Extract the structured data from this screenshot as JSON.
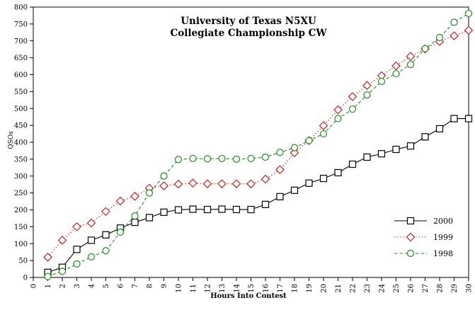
{
  "figure": {
    "title_line1": "University of Texas N5XU",
    "title_line2": "Collegiate Championship CW"
  },
  "chart_data": {
    "type": "line",
    "title": "University of Texas N5XU Collegiate Championship CW",
    "xlabel": "Hours Into Contest",
    "ylabel": "QSOs",
    "xlim": [
      0,
      30
    ],
    "ylim": [
      0,
      800
    ],
    "x_tick_step": 1,
    "y_tick_step": 50,
    "grid": false,
    "legend_position": "inside-right-middle",
    "x": [
      1,
      2,
      3,
      4,
      5,
      6,
      7,
      8,
      9,
      10,
      11,
      12,
      13,
      14,
      15,
      16,
      17,
      18,
      19,
      20,
      21,
      22,
      23,
      24,
      25,
      26,
      27,
      28,
      29,
      30
    ],
    "series": [
      {
        "name": "2000",
        "color": "#000000",
        "line_style": "solid",
        "marker": "square",
        "values": [
          15,
          30,
          83,
          110,
          126,
          146,
          163,
          177,
          193,
          200,
          202,
          201,
          202,
          201,
          201,
          216,
          239,
          258,
          279,
          293,
          310,
          335,
          356,
          366,
          379,
          389,
          416,
          440,
          470,
          470
        ]
      },
      {
        "name": "1999",
        "color": "#cc2222",
        "line_style": "dotted",
        "marker": "diamond",
        "values": [
          60,
          110,
          150,
          161,
          195,
          226,
          240,
          264,
          271,
          276,
          279,
          277,
          277,
          277,
          277,
          291,
          319,
          369,
          405,
          449,
          496,
          535,
          568,
          597,
          626,
          654,
          676,
          698,
          715,
          731
        ]
      },
      {
        "name": "1998",
        "color": "#1f8c1f",
        "line_style": "dashed",
        "marker": "circle",
        "values": [
          3,
          18,
          40,
          61,
          79,
          134,
          182,
          250,
          300,
          349,
          352,
          351,
          352,
          350,
          352,
          356,
          370,
          384,
          405,
          425,
          470,
          498,
          540,
          580,
          603,
          630,
          677,
          710,
          755,
          781
        ]
      }
    ]
  }
}
